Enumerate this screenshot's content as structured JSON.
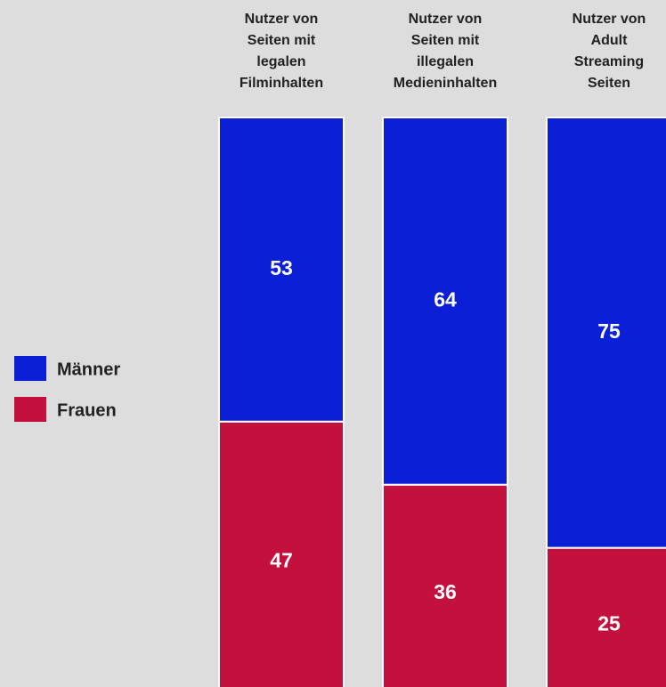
{
  "chart_data": {
    "type": "stacked_bar",
    "categories": [
      "Nutzer von\nSeiten mit\nlegalen\nFilminhalten",
      "Nutzer von\nSeiten mit\nillegalen\nMedieninhalten",
      "Nutzer von\nAdult\nStreaming\nSeiten"
    ],
    "series": [
      {
        "name": "Männer",
        "color": "#0a1fd6",
        "values": [
          53,
          64,
          75
        ]
      },
      {
        "name": "Frauen",
        "color": "#c4103c",
        "values": [
          47,
          36,
          25
        ]
      }
    ],
    "ylim": [
      0,
      100
    ],
    "legend": "left"
  }
}
